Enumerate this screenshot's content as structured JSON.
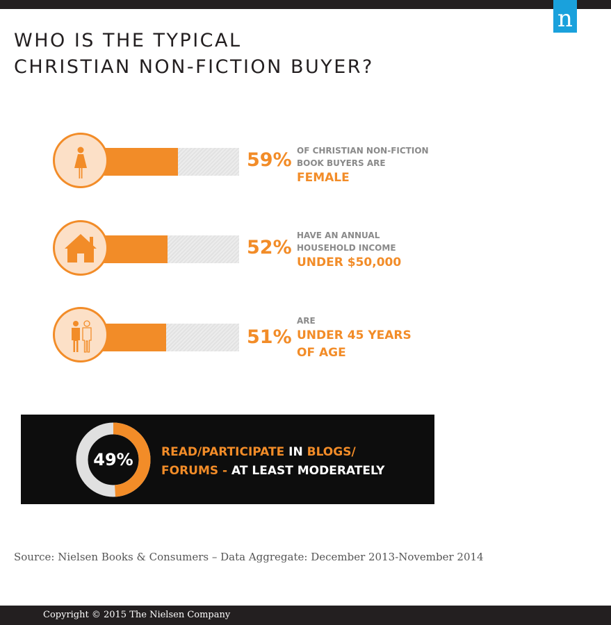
{
  "header": {
    "title_line1": "WHO IS THE TYPICAL",
    "title_line2": "CHRISTIAN NON-FICTION BUYER?",
    "logo_letter": "n"
  },
  "stats": [
    {
      "icon": "female-icon",
      "percent": "59%",
      "line1": "OF CHRISTIAN NON-FICTION",
      "line2": "BOOK BUYERS ARE",
      "highlight1": "FEMALE",
      "highlight2": ""
    },
    {
      "icon": "house-icon",
      "percent": "52%",
      "line1": "HAVE AN ANNUAL",
      "line2": "HOUSEHOLD INCOME",
      "highlight1": "UNDER $50,000",
      "highlight2": ""
    },
    {
      "icon": "people-icon",
      "percent": "51%",
      "line1": "ARE",
      "line2": "",
      "highlight1": "UNDER 45 YEARS",
      "highlight2": "OF AGE"
    }
  ],
  "blogs": {
    "percent": "49%",
    "part1": "READ/PARTICIPATE",
    "part2": " IN ",
    "part3": "BLOGS/",
    "part4": "FORUMS - ",
    "part5": "AT LEAST MODERATELY"
  },
  "source": "Source: Nielsen Books & Consumers – Data Aggregate: December 2013-November 2014",
  "footer": {
    "copyright": "Copyright © 2015 The Nielsen Company"
  },
  "colors": {
    "accent": "#f28c28",
    "circle_bg": "#fce0c7",
    "bar_track": "#e4e4e4",
    "donut_track": "#e0e0e0",
    "dark": "#231f20",
    "logo": "#1aa1dc"
  },
  "chart_data": {
    "type": "bar",
    "orientation": "horizontal",
    "categories": [
      "FEMALE",
      "UNDER $50,000",
      "UNDER 45 YEARS OF AGE",
      "BLOGS/FORUMS"
    ],
    "values": [
      59,
      52,
      51,
      49
    ],
    "xlim": [
      0,
      100
    ],
    "unit": "%"
  }
}
